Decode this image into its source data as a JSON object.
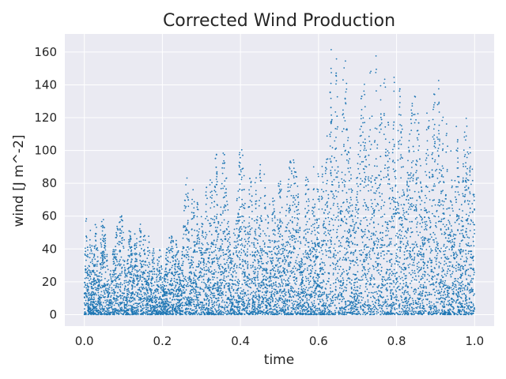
{
  "chart_data": {
    "type": "scatter",
    "title": "Corrected Wind Production",
    "xlabel": "time",
    "ylabel": "wind [J m^-2]",
    "xlim": [
      -0.05,
      1.05
    ],
    "ylim": [
      -7,
      171
    ],
    "x_ticks": [
      0.0,
      0.2,
      0.4,
      0.6,
      0.8,
      1.0
    ],
    "x_tick_labels": [
      "0.0",
      "0.2",
      "0.4",
      "0.6",
      "0.8",
      "1.0"
    ],
    "y_ticks": [
      0,
      20,
      40,
      60,
      80,
      100,
      120,
      140,
      160
    ],
    "y_tick_labels": [
      "0",
      "20",
      "40",
      "60",
      "80",
      "100",
      "120",
      "140",
      "160"
    ],
    "grid": true,
    "style": "seaborn-darkgrid",
    "colors": {
      "points": "#1f77b4",
      "plot_background": "#eaeaf2",
      "grid": "#ffffff"
    },
    "series": [
      {
        "envelope_x": [
          0.0,
          0.02,
          0.05,
          0.08,
          0.1,
          0.12,
          0.15,
          0.18,
          0.2,
          0.23,
          0.26,
          0.3,
          0.33,
          0.36,
          0.38,
          0.4,
          0.42,
          0.45,
          0.48,
          0.52,
          0.55,
          0.58,
          0.61,
          0.63,
          0.66,
          0.7,
          0.73,
          0.76,
          0.78,
          0.81,
          0.84,
          0.87,
          0.9,
          0.92,
          0.95,
          0.97,
          1.0
        ],
        "envelope_max_y": [
          62,
          58,
          60,
          58,
          65,
          55,
          58,
          40,
          45,
          50,
          85,
          75,
          100,
          102,
          90,
          107,
          90,
          95,
          75,
          100,
          90,
          92,
          95,
          163,
          158,
          150,
          155,
          160,
          150,
          145,
          140,
          120,
          163,
          125,
          120,
          115,
          132
        ],
        "envelope_min_y": [
          0,
          0,
          0,
          0,
          0,
          0,
          0,
          0,
          0,
          0,
          0,
          0,
          0,
          0,
          0,
          0,
          0,
          0,
          0,
          0,
          0,
          0,
          0,
          0,
          0,
          0,
          0,
          0,
          0,
          0,
          0,
          0,
          0,
          0,
          0,
          0,
          0
        ]
      }
    ]
  }
}
